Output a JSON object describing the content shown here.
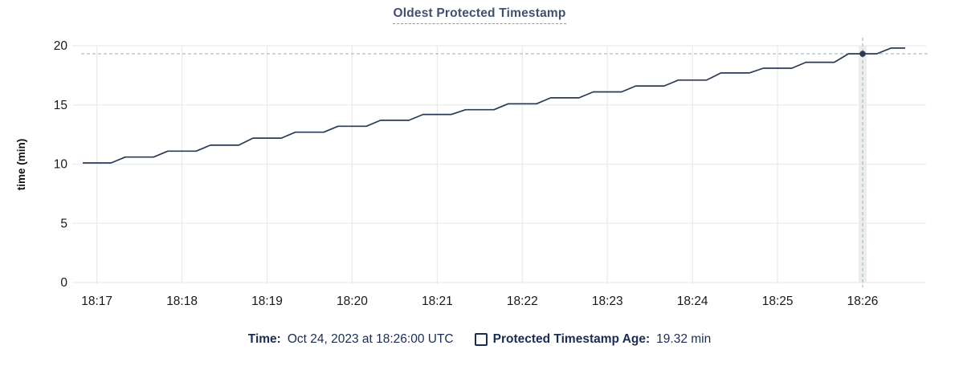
{
  "title": "Oldest Protected Timestamp",
  "colors": {
    "title": "#40516d",
    "series_line": "#2b3a55",
    "hover_dot": "#2b3a55",
    "crosshair": "#a8bfcc",
    "gridline": "#e9ebed",
    "hover_band": "#ededee",
    "axis_text": "#17191c",
    "footer_text": "#1a2c52"
  },
  "chart_data": {
    "type": "line",
    "title": "Oldest Protected Timestamp",
    "xlabel": "",
    "ylabel": "time (min)",
    "ylim": [
      0,
      20
    ],
    "y_ticks": [
      0,
      5,
      10,
      15,
      20
    ],
    "x_ticks": [
      "18:17",
      "18:18",
      "18:19",
      "18:20",
      "18:21",
      "18:22",
      "18:23",
      "18:24",
      "18:25",
      "18:26"
    ],
    "x_domain": [
      "18:16:50",
      "18:26:30"
    ],
    "grid": true,
    "line_style": "staircase",
    "series": [
      {
        "name": "Protected Timestamp Age",
        "unit": "min",
        "ramp_seconds": 10,
        "steps": [
          {
            "t": "18:16:50",
            "v": 10.1
          },
          {
            "t": "18:17:20",
            "v": 10.6
          },
          {
            "t": "18:17:50",
            "v": 11.1
          },
          {
            "t": "18:18:20",
            "v": 11.6
          },
          {
            "t": "18:18:50",
            "v": 12.2
          },
          {
            "t": "18:19:20",
            "v": 12.7
          },
          {
            "t": "18:19:50",
            "v": 13.2
          },
          {
            "t": "18:20:20",
            "v": 13.7
          },
          {
            "t": "18:20:50",
            "v": 14.2
          },
          {
            "t": "18:21:20",
            "v": 14.6
          },
          {
            "t": "18:21:50",
            "v": 15.1
          },
          {
            "t": "18:22:20",
            "v": 15.6
          },
          {
            "t": "18:22:50",
            "v": 16.1
          },
          {
            "t": "18:23:20",
            "v": 16.6
          },
          {
            "t": "18:23:50",
            "v": 17.1
          },
          {
            "t": "18:24:20",
            "v": 17.7
          },
          {
            "t": "18:24:50",
            "v": 18.1
          },
          {
            "t": "18:25:20",
            "v": 18.6
          },
          {
            "t": "18:25:50",
            "v": 19.32
          },
          {
            "t": "18:26:20",
            "v": 19.8
          }
        ]
      }
    ],
    "hover_point": {
      "time": "18:26:00",
      "value": 19.32
    },
    "legend_position": "bottom"
  },
  "footer": {
    "time_label": "Time:",
    "time_value": "Oct 24, 2023 at 18:26:00 UTC",
    "series_label": "Protected Timestamp Age:",
    "series_value": "19.32 min",
    "checkbox_checked": false
  }
}
